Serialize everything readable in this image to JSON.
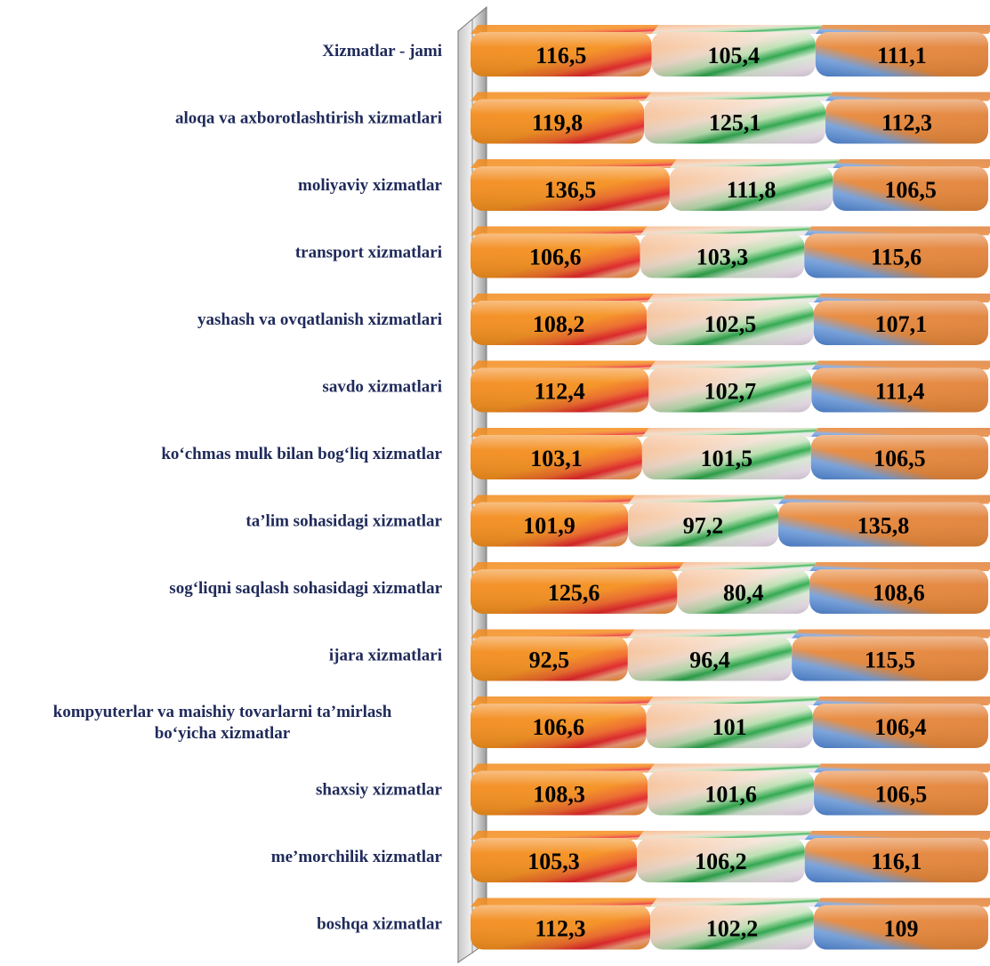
{
  "chart_data": {
    "type": "bar",
    "orientation": "horizontal",
    "stacked": true,
    "categories": [
      [
        "Xizmatlar - jami"
      ],
      [
        "aloqa va axborotlashtirish xizmatlari"
      ],
      [
        "moliyaviy xizmatlar"
      ],
      [
        "transport xizmatlari"
      ],
      [
        "yashash va ovqatlanish xizmatlari"
      ],
      [
        "savdo xizmatlari"
      ],
      [
        "ko‘chmas mulk bilan bog‘liq xizmatlar"
      ],
      [
        "ta’lim sohasidagi xizmatlar"
      ],
      [
        "sog‘liqni saqlash sohasidagi xizmatlar"
      ],
      [
        "ijara xizmatlari"
      ],
      [
        "kompyuterlar va maishiy tovarlarni ta’mirlash",
        "bo‘yicha xizmatlar"
      ],
      [
        "shaxsiy xizmatlar"
      ],
      [
        "me’morchilik xizmatlar"
      ],
      [
        "boshqa xizmatlar"
      ]
    ],
    "series": [
      {
        "labels": [
          "116,5",
          "119,8",
          "136,5",
          "106,6",
          "108,2",
          "112,4",
          "103,1",
          "101,9",
          "125,6",
          "92,5",
          "106,6",
          "108,3",
          "105,3",
          "112,3"
        ],
        "values": [
          116.5,
          119.8,
          136.5,
          106.6,
          108.2,
          112.4,
          103.1,
          101.9,
          125.6,
          92.5,
          106.6,
          108.3,
          105.3,
          112.3
        ],
        "color": "#f28a1e",
        "accent": "#e8262a"
      },
      {
        "labels": [
          "105,4",
          "125,1",
          "111,8",
          "103,3",
          "102,5",
          "102,7",
          "101,5",
          "97,2",
          "80,4",
          "96,4",
          "101",
          "101,6",
          "106,2",
          "102,2"
        ],
        "values": [
          105.4,
          125.1,
          111.8,
          103.3,
          102.5,
          102.7,
          101.5,
          97.2,
          80.4,
          96.4,
          101,
          101.6,
          106.2,
          102.2
        ],
        "color": "#f7c59e",
        "accent": "#2aa84a"
      },
      {
        "labels": [
          "111,1",
          "112,3",
          "106,5",
          "115,6",
          "107,1",
          "111,4",
          "106,5",
          "135,8",
          "108,6",
          "115,5",
          "106,4",
          "106,5",
          "116,1",
          "109"
        ],
        "values": [
          111.1,
          112.3,
          106.5,
          115.6,
          107.1,
          111.4,
          106.5,
          135.8,
          108.6,
          115.5,
          106.4,
          106.5,
          116.1,
          109
        ],
        "color": "#e8883a",
        "accent": "#5a8fd6"
      }
    ],
    "grid": false,
    "legend": "none"
  }
}
